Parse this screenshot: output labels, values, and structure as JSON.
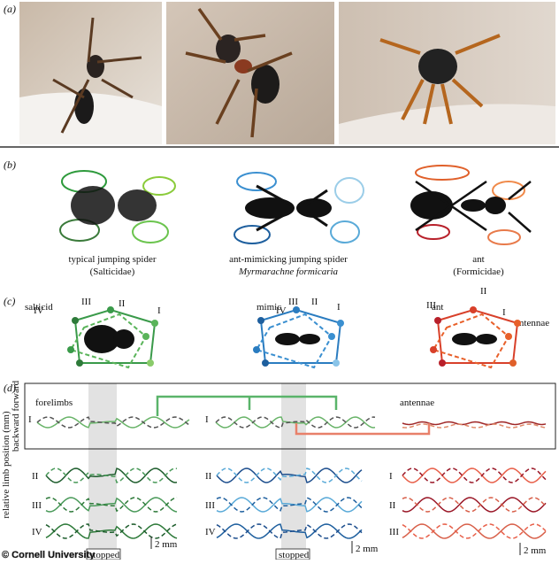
{
  "panel_a": {
    "label": "(a)"
  },
  "panel_b": {
    "label": "(b)",
    "captions": [
      [
        "typical jumping spider",
        "(Salticidae)"
      ],
      [
        "ant-mimicking jumping spider",
        "Myrmarachne formicaria"
      ],
      [
        "ant",
        "(Formicidae)"
      ]
    ]
  },
  "panel_c": {
    "label": "(c)",
    "groups": [
      {
        "title": "salticid",
        "legs": [
          "IV",
          "III",
          "II",
          "I"
        ]
      },
      {
        "title": "mimic",
        "legs": [
          "IV",
          "III",
          "II",
          "I"
        ]
      },
      {
        "title": "ant",
        "legs": [
          "III",
          "II",
          "I",
          "antennae"
        ]
      }
    ]
  },
  "panel_d": {
    "label": "(d)",
    "y_axis": "relative limb position (mm)",
    "y_sub": "backward forward",
    "top_titles": [
      "forelimbs",
      "antennae"
    ],
    "top_rows": [
      "I",
      "I"
    ],
    "salticid_rows": [
      "II",
      "III",
      "IV"
    ],
    "mimic_rows": [
      "II",
      "III",
      "IV"
    ],
    "ant_rows": [
      "I",
      "II",
      "III"
    ],
    "scale_bars": [
      "2 mm",
      "2 mm",
      "2 mm"
    ],
    "stopped": [
      "stopped",
      "stopped"
    ]
  },
  "watermark": "© Cornell University"
}
